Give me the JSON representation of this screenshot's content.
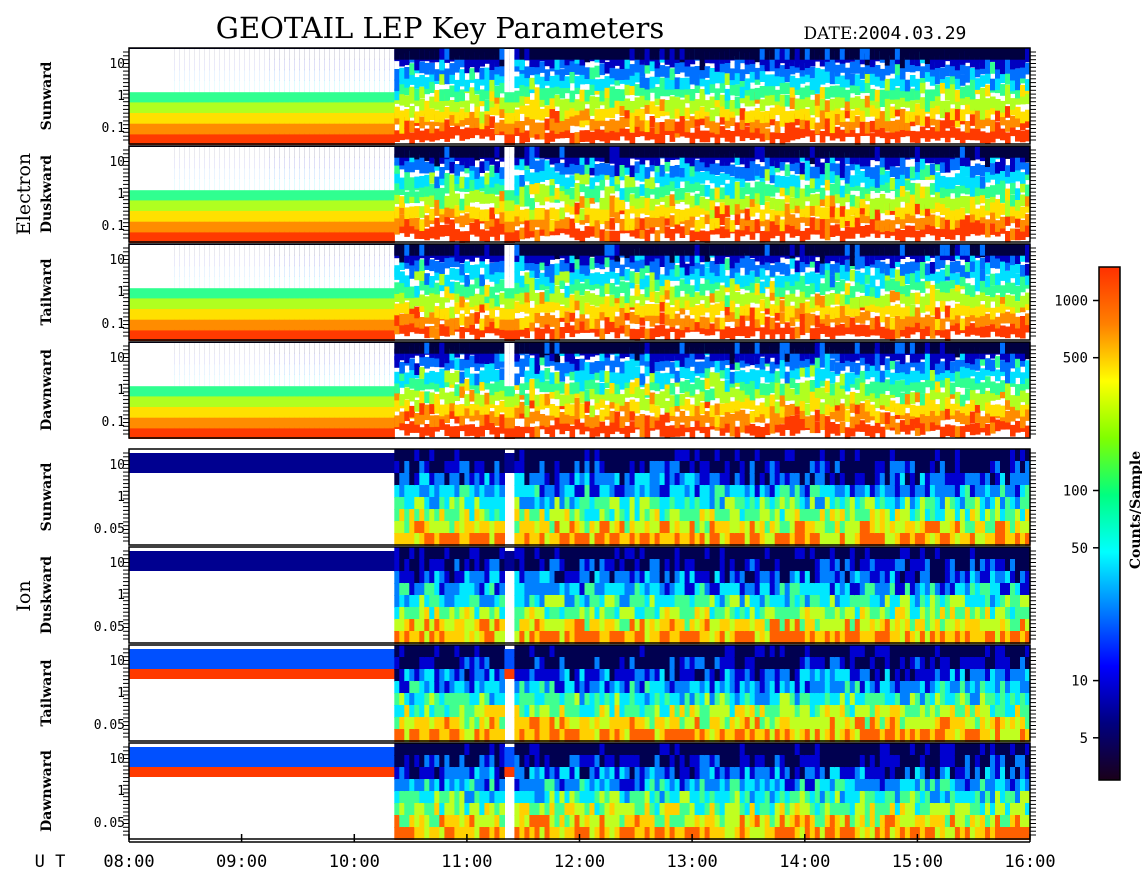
{
  "chart_data": {
    "type": "heatmap",
    "title": "GEOTAIL LEP Key Parameters",
    "date_label": "DATE:",
    "date_value": "2004.03.29",
    "x_axis_label": "U T",
    "x_ticks": [
      "08:00",
      "09:00",
      "10:00",
      "11:00",
      "12:00",
      "13:00",
      "14:00",
      "15:00",
      "16:00"
    ],
    "x_range_hours": [
      8,
      16
    ],
    "colorbar": {
      "label": "Counts/Sample",
      "scale": "log",
      "range": [
        3,
        1500
      ],
      "ticks": [
        "5",
        "10",
        "50",
        "100",
        "500",
        "1000"
      ],
      "colors": [
        "#1a001a",
        "#000080",
        "#0000ff",
        "#0080ff",
        "#00ffff",
        "#00ff80",
        "#80ff00",
        "#ffff00",
        "#ff8000",
        "#ff3000"
      ]
    },
    "groups": [
      {
        "name": "Electron",
        "panels": [
          {
            "name": "Sunward",
            "y_ticks": [
              "10",
              "1",
              "0.1"
            ]
          },
          {
            "name": "Duskward",
            "y_ticks": [
              "10",
              "1",
              "0.1"
            ]
          },
          {
            "name": "Tailward",
            "y_ticks": [
              "10",
              "1",
              "0.1"
            ]
          },
          {
            "name": "Dawnward",
            "y_ticks": [
              "10",
              "1",
              "0.1"
            ]
          }
        ]
      },
      {
        "name": "Ion",
        "panels": [
          {
            "name": "Sunward",
            "y_ticks": [
              "10",
              "1",
              "0.05"
            ]
          },
          {
            "name": "Duskward",
            "y_ticks": [
              "10",
              "1",
              "0.05"
            ]
          },
          {
            "name": "Tailward",
            "y_ticks": [
              "10",
              "1",
              "0.05"
            ]
          },
          {
            "name": "Dawnward",
            "y_ticks": [
              "10",
              "1",
              "0.05"
            ]
          }
        ]
      }
    ]
  }
}
